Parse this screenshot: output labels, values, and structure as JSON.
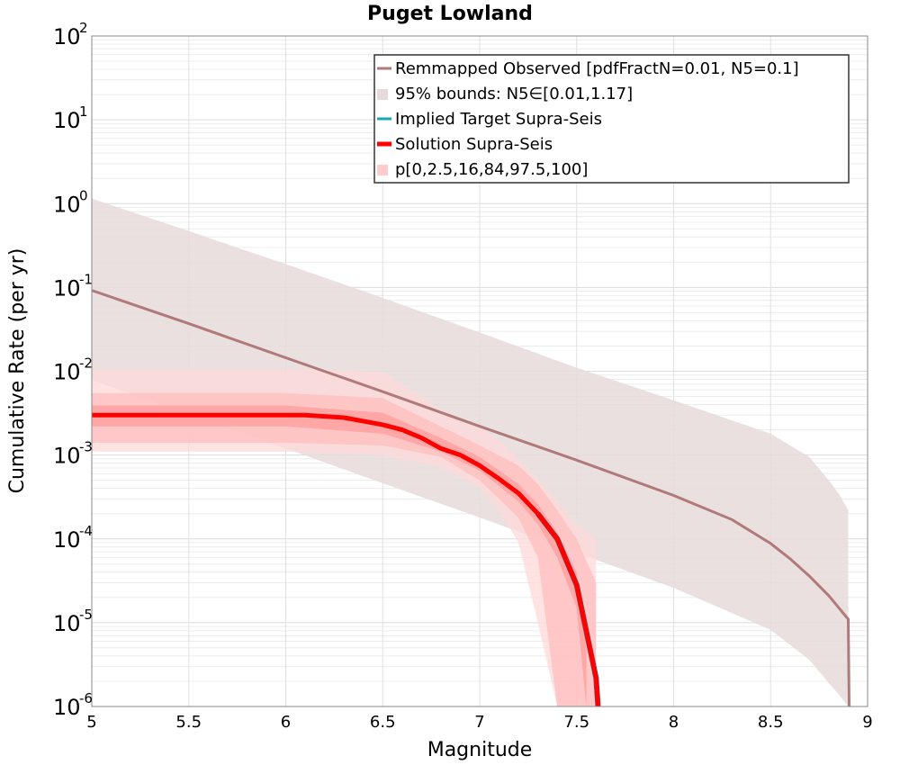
{
  "chart_data": {
    "type": "line",
    "title": "Puget Lowland",
    "xlabel": "Magnitude",
    "ylabel": "Cumulative Rate (per yr)",
    "xlim": [
      5,
      9
    ],
    "ylim": [
      1e-06,
      100
    ],
    "yscale": "log",
    "grid": true,
    "legend_position": "top-right",
    "x_ticks": [
      "5",
      "5.5",
      "6",
      "6.5",
      "7",
      "7.5",
      "8",
      "8.5",
      "9"
    ],
    "y_ticks": [
      {
        "base": "10",
        "exp": "-6"
      },
      {
        "base": "10",
        "exp": "-5"
      },
      {
        "base": "10",
        "exp": "-4"
      },
      {
        "base": "10",
        "exp": "-3"
      },
      {
        "base": "10",
        "exp": "-2"
      },
      {
        "base": "10",
        "exp": "-1"
      },
      {
        "base": "10",
        "exp": "0"
      },
      {
        "base": "10",
        "exp": "1"
      },
      {
        "base": "10",
        "exp": "2"
      }
    ],
    "legend": [
      {
        "label": "Remmapped Observed [pdfFractN=0.01, N5=0.1]",
        "kind": "line",
        "color": "#b07a7a"
      },
      {
        "label": "95% bounds: N5∈[0.01,1.17]",
        "kind": "band",
        "color": "#e8dada"
      },
      {
        "label": "Implied Target Supra-Seis",
        "kind": "line",
        "color": "#1aa6b7"
      },
      {
        "label": "Solution Supra-Seis",
        "kind": "thick-line",
        "color": "#ff0000"
      },
      {
        "label": "p[0,2.5,16,84,97.5,100]",
        "kind": "band",
        "color": "#ffcccc"
      }
    ],
    "observed": {
      "color": "#b07a7a",
      "x": [
        5.0,
        5.5,
        6.0,
        6.5,
        7.0,
        7.5,
        8.0,
        8.3,
        8.5,
        8.6,
        8.7,
        8.8,
        8.9,
        8.905
      ],
      "y": [
        0.092,
        0.037,
        0.0145,
        0.0057,
        0.0022,
        0.00087,
        0.00033,
        0.00017,
        8.8e-05,
        5.8e-05,
        3.6e-05,
        2.1e-05,
        1.1e-05,
        1e-06
      ]
    },
    "observed_bounds": {
      "color": "#e8dada",
      "x": [
        5.0,
        5.5,
        6.0,
        6.5,
        7.0,
        7.5,
        8.0,
        8.5,
        8.7,
        8.8,
        8.85,
        8.9
      ],
      "upper": [
        1.15,
        0.47,
        0.19,
        0.075,
        0.029,
        0.011,
        0.0045,
        0.0018,
        0.00095,
        0.0005,
        0.00035,
        0.00022
      ],
      "lower": [
        0.0078,
        0.0031,
        0.0012,
        0.00046,
        0.00018,
        6.8e-05,
        2.6e-05,
        8.2e-06,
        3.6e-06,
        1.9e-06,
        1.4e-06,
        1e-06
      ]
    },
    "solution": {
      "color": "#ff0000",
      "x": [
        5.0,
        5.5,
        6.0,
        6.1,
        6.3,
        6.5,
        6.6,
        6.7,
        6.8,
        6.9,
        7.0,
        7.1,
        7.2,
        7.3,
        7.4,
        7.5,
        7.6,
        7.61
      ],
      "y": [
        0.003,
        0.003,
        0.003,
        0.003,
        0.0028,
        0.0023,
        0.002,
        0.0016,
        0.0012,
        0.001,
        0.00075,
        0.00052,
        0.00035,
        0.0002,
        0.0001,
        2.8e-05,
        2.2e-06,
        1e-06
      ]
    },
    "implied_target": {
      "color": "#1aa6b7",
      "x": [
        7.3,
        7.4,
        7.5,
        7.6,
        7.61
      ],
      "y": [
        0.0002,
        0.0001,
        2.8e-05,
        2.2e-06,
        1e-06
      ]
    },
    "solution_bands": [
      {
        "name": "p0-100",
        "color": "#ffd9d9",
        "x": [
          5.0,
          6.0,
          6.5,
          6.8,
          7.0,
          7.1,
          7.2,
          7.3,
          7.4,
          7.5,
          7.6
        ],
        "upper": [
          0.0105,
          0.0105,
          0.0098,
          0.0035,
          0.0022,
          0.0015,
          0.0009,
          0.0005,
          0.00028,
          0.00015,
          0.0001
        ],
        "lower": [
          0.0011,
          0.0011,
          0.001,
          0.00072,
          0.00041,
          0.00022,
          9e-05,
          1e-05,
          1e-06,
          1e-06,
          1e-06
        ]
      },
      {
        "name": "p2.5-97.5",
        "color": "#ffbdbd",
        "x": [
          5.0,
          6.0,
          6.5,
          6.8,
          7.0,
          7.2,
          7.3,
          7.4,
          7.5,
          7.6
        ],
        "upper": [
          0.0055,
          0.0055,
          0.0048,
          0.0022,
          0.0013,
          0.00075,
          0.00045,
          0.00022,
          0.0001,
          3e-05
        ],
        "lower": [
          0.0014,
          0.0014,
          0.0013,
          0.00095,
          0.0005,
          0.00018,
          6e-05,
          1e-06,
          1e-06,
          1e-06
        ]
      },
      {
        "name": "p16-84",
        "color": "#ff9c9c",
        "x": [
          5.0,
          6.0,
          6.5,
          6.8,
          7.0,
          7.2,
          7.3,
          7.4,
          7.5,
          7.55
        ],
        "upper": [
          0.0039,
          0.0039,
          0.0032,
          0.0016,
          0.00095,
          0.00045,
          0.00026,
          0.00012,
          4e-05,
          5e-06
        ],
        "lower": [
          0.0022,
          0.0022,
          0.0018,
          0.0011,
          0.00065,
          0.00028,
          0.00015,
          6e-05,
          1.5e-05,
          1e-06
        ]
      }
    ]
  }
}
